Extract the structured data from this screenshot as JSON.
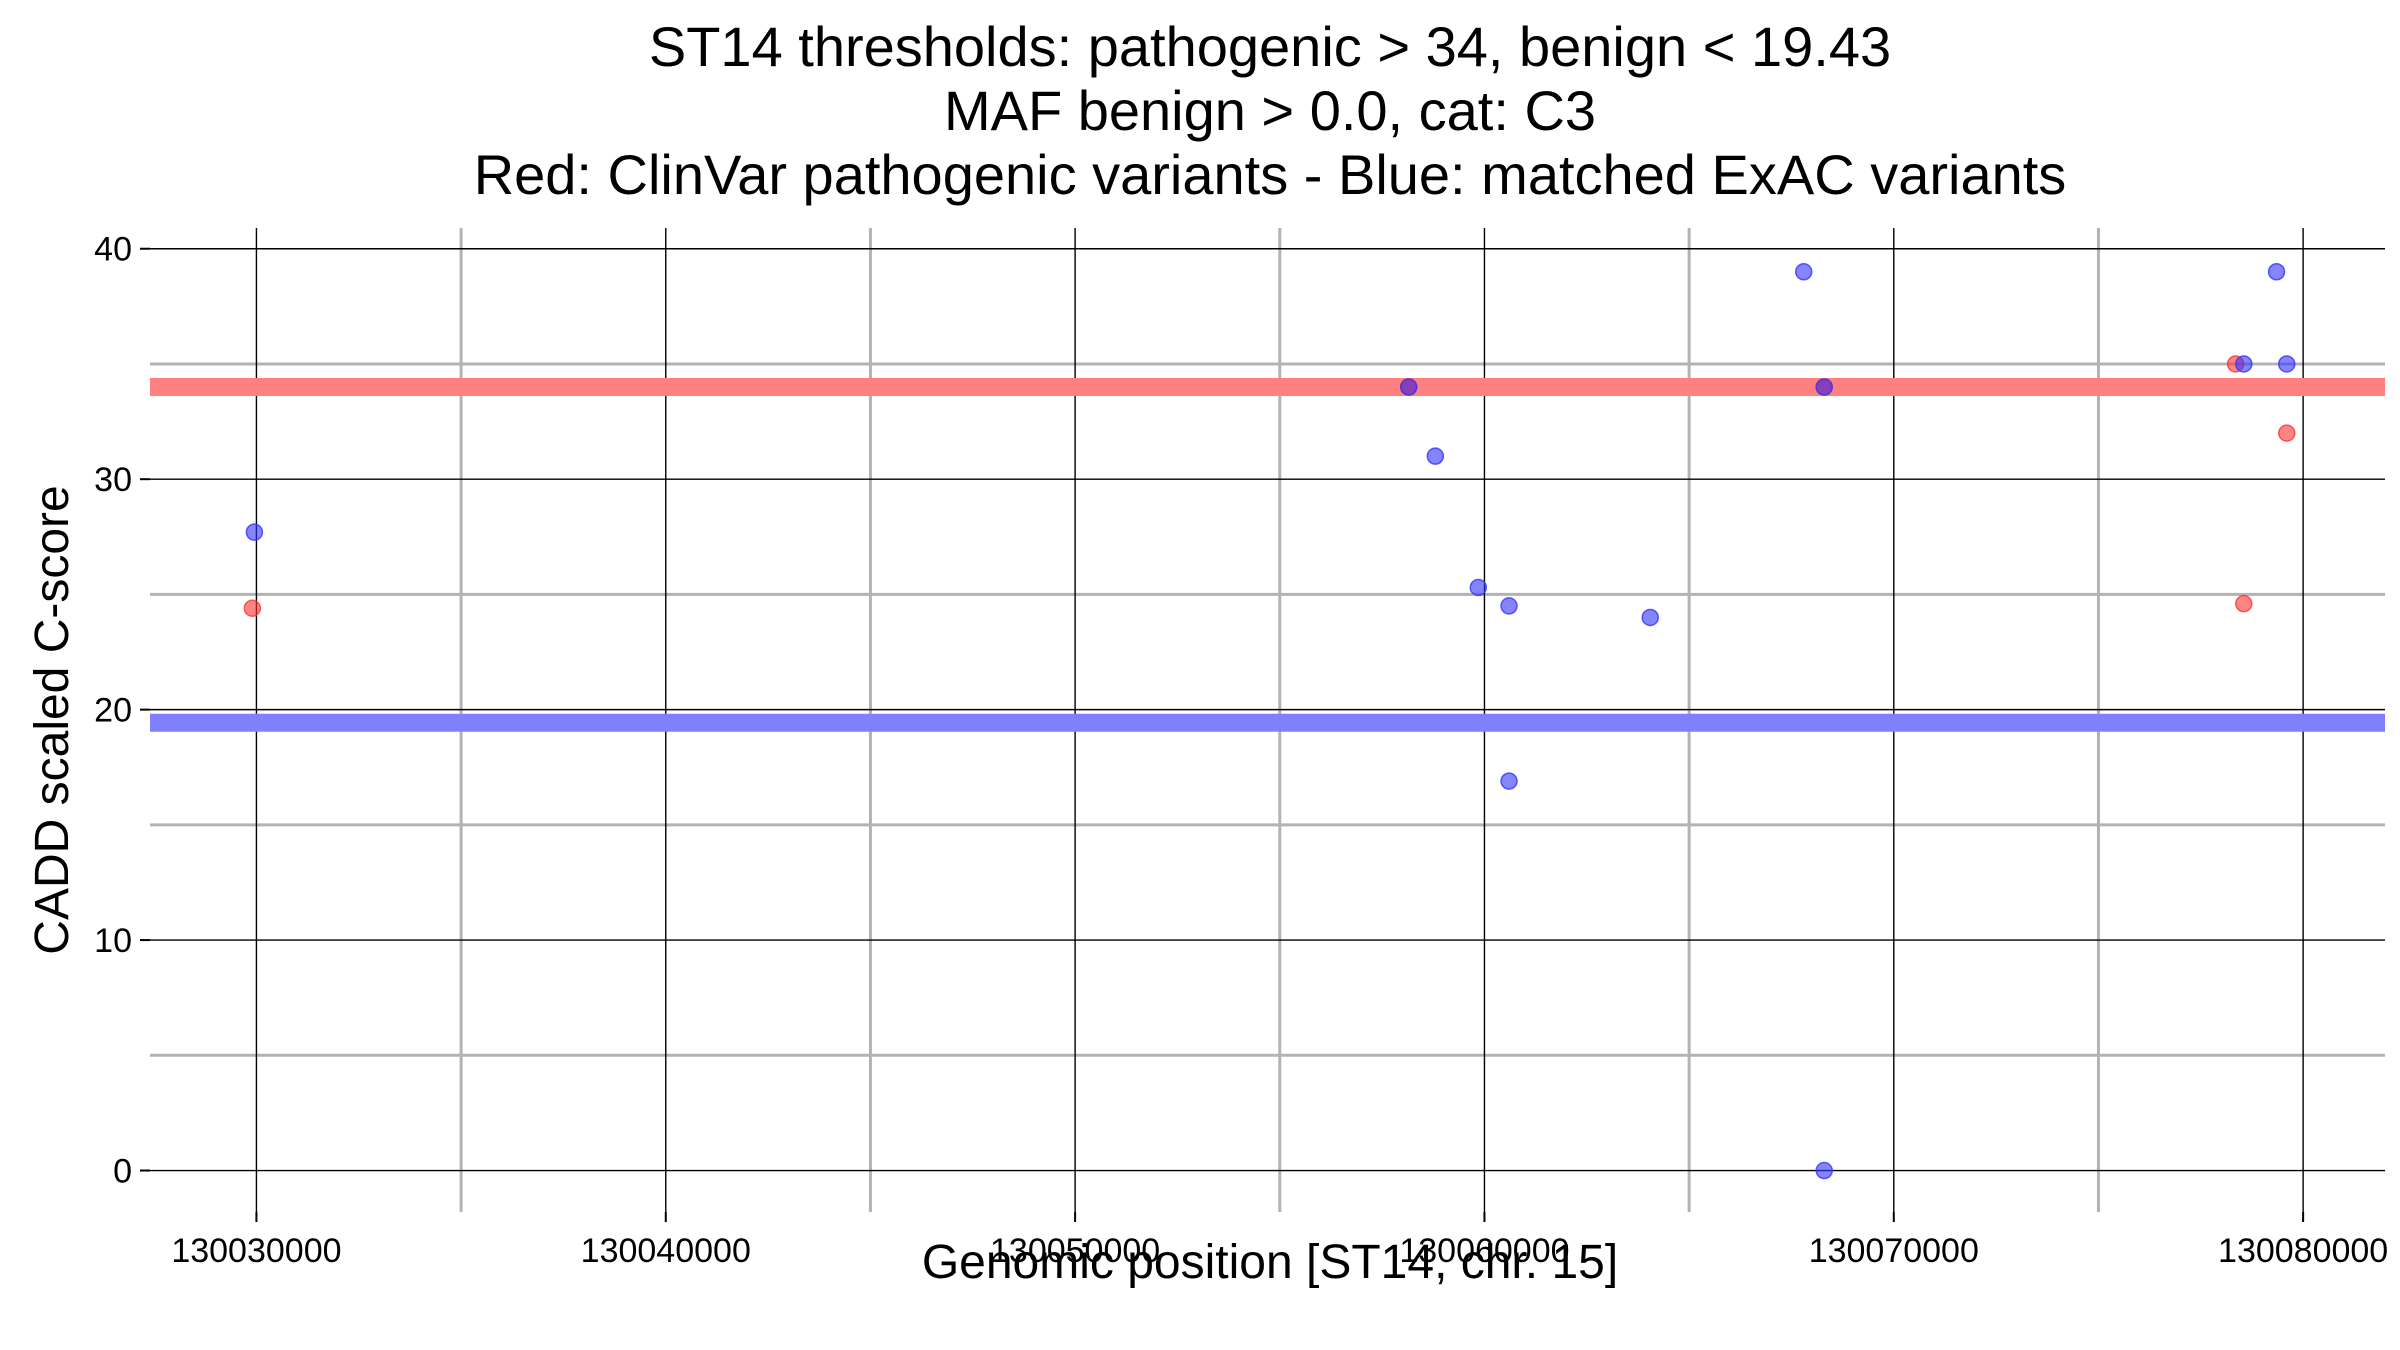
{
  "chart_data": {
    "type": "scatter",
    "title_lines": [
      "ST14 thresholds: pathogenic > 34, benign < 19.43",
      "MAF benign > 0.0, cat: C3",
      "Red: ClinVar pathogenic variants - Blue: matched ExAC variants"
    ],
    "xlabel": "Genomic position [ST14, chr. 15]",
    "ylabel": "CADD scaled C-score",
    "xlim": [
      130027400,
      130082000
    ],
    "ylim": [
      -1.8,
      40.9
    ],
    "x_ticks": [
      130030000,
      130040000,
      130050000,
      130060000,
      130070000,
      130080000
    ],
    "x_tick_labels": [
      "130030000",
      "130040000",
      "130050000",
      "130060000",
      "130070000",
      "130080000"
    ],
    "y_ticks": [
      0,
      10,
      20,
      30,
      40
    ],
    "y_tick_labels": [
      "0",
      "10",
      "20",
      "30",
      "40"
    ],
    "grid": true,
    "thresholds": [
      {
        "value": 34,
        "color": "#ff8080"
      },
      {
        "value": 19.43,
        "color": "#8080ff"
      }
    ],
    "series": [
      {
        "color": "#ff3333",
        "points": [
          {
            "x": 130029900,
            "y": 24.4
          },
          {
            "x": 130058150,
            "y": 34.0
          },
          {
            "x": 130068300,
            "y": 34.0
          },
          {
            "x": 130078350,
            "y": 35.0
          },
          {
            "x": 130078550,
            "y": 24.6
          },
          {
            "x": 130079600,
            "y": 32.0
          }
        ]
      },
      {
        "color": "#3333ff",
        "points": [
          {
            "x": 130029950,
            "y": 27.7
          },
          {
            "x": 130058150,
            "y": 34.0
          },
          {
            "x": 130058800,
            "y": 31.0
          },
          {
            "x": 130059850,
            "y": 25.3
          },
          {
            "x": 130060600,
            "y": 24.5
          },
          {
            "x": 130060600,
            "y": 16.9
          },
          {
            "x": 130064050,
            "y": 24.0
          },
          {
            "x": 130067800,
            "y": 39.0
          },
          {
            "x": 130068300,
            "y": 34.0
          },
          {
            "x": 130068300,
            "y": 0.0
          },
          {
            "x": 130078550,
            "y": 35.0
          },
          {
            "x": 130079350,
            "y": 39.0
          },
          {
            "x": 130079600,
            "y": 35.0
          }
        ]
      }
    ]
  }
}
